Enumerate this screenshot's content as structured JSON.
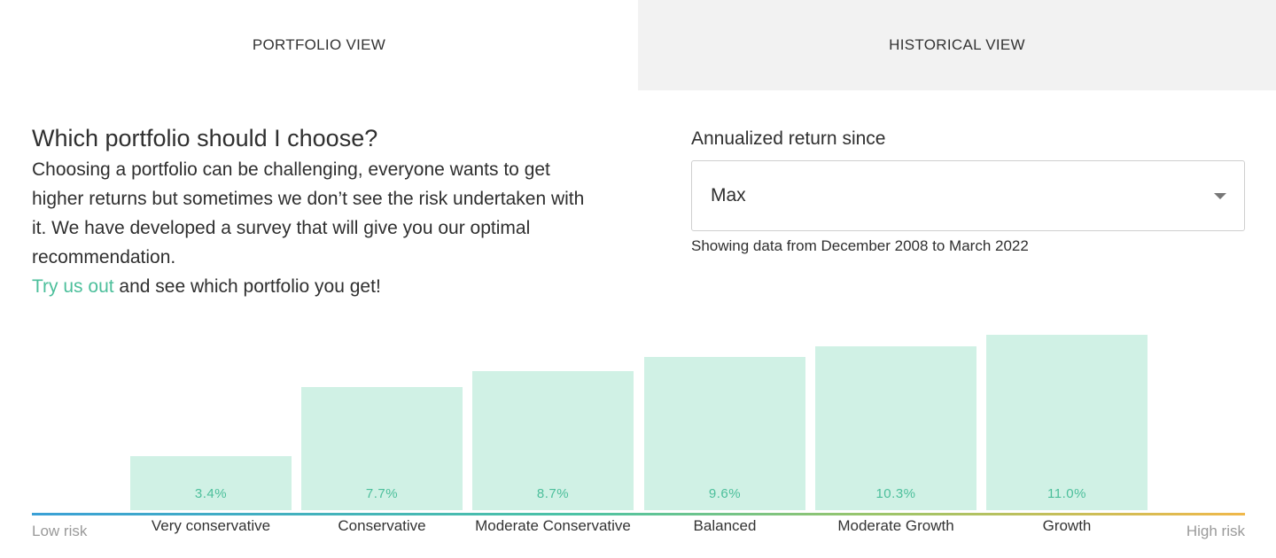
{
  "tabs": [
    {
      "label": "PORTFOLIO VIEW",
      "active": true
    },
    {
      "label": "HISTORICAL VIEW",
      "active": false
    }
  ],
  "intro": {
    "title": "Which portfolio should I choose?",
    "body": "Choosing a portfolio can be challenging, everyone wants to get higher returns but sometimes we don’t see the risk undertaken with it. We have developed a survey that will give you our optimal recommendation.",
    "cta_link": "Try us out",
    "cta_rest": " and see which portfolio you get!"
  },
  "return_filter": {
    "label": "Annualized return since",
    "selected": "Max",
    "note": "Showing data from December 2008 to March 2022"
  },
  "risk_axis": {
    "low": "Low risk",
    "high": "High risk"
  },
  "colors": {
    "accent": "#4cbf9b",
    "bar_fill": "#d0f1e5",
    "inactive_tab": "#f2f2f2"
  },
  "chart_data": {
    "type": "bar",
    "categories": [
      "Very conservative",
      "Conservative",
      "Moderate Conservative",
      "Balanced",
      "Moderate Growth",
      "Growth"
    ],
    "values": [
      3.4,
      7.7,
      8.7,
      9.6,
      10.3,
      11.0
    ],
    "value_labels": [
      "3.4%",
      "7.7%",
      "8.7%",
      "9.6%",
      "10.3%",
      "11.0%"
    ],
    "ylim": [
      0,
      11.0
    ]
  }
}
